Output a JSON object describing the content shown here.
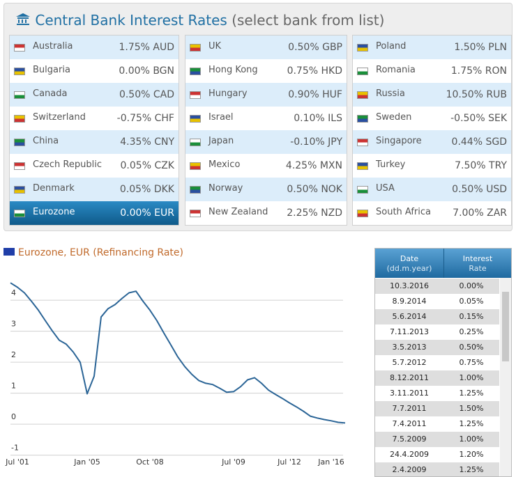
{
  "header": {
    "title": "Central Bank Interest Rates",
    "subtitle": "(select bank from list)"
  },
  "banks": [
    [
      {
        "name": "Australia",
        "rate": "1.75% AUD"
      },
      {
        "name": "Bulgaria",
        "rate": "0.00% BGN"
      },
      {
        "name": "Canada",
        "rate": "0.50% CAD"
      },
      {
        "name": "Switzerland",
        "rate": "-0.75% CHF"
      },
      {
        "name": "China",
        "rate": "4.35% CNY"
      },
      {
        "name": "Czech Republic",
        "rate": "0.05% CZK"
      },
      {
        "name": "Denmark",
        "rate": "0.05% DKK"
      },
      {
        "name": "Eurozone",
        "rate": "0.00% EUR",
        "selected": true
      }
    ],
    [
      {
        "name": "UK",
        "rate": "0.50% GBP"
      },
      {
        "name": "Hong Kong",
        "rate": "0.75% HKD"
      },
      {
        "name": "Hungary",
        "rate": "0.90% HUF"
      },
      {
        "name": "Israel",
        "rate": "0.10% ILS"
      },
      {
        "name": "Japan",
        "rate": "-0.10% JPY"
      },
      {
        "name": "Mexico",
        "rate": "4.25% MXN"
      },
      {
        "name": "Norway",
        "rate": "0.50% NOK"
      },
      {
        "name": "New Zealand",
        "rate": "2.25% NZD"
      }
    ],
    [
      {
        "name": "Poland",
        "rate": "1.50% PLN"
      },
      {
        "name": "Romania",
        "rate": "1.75% RON"
      },
      {
        "name": "Russia",
        "rate": "10.50% RUB"
      },
      {
        "name": "Sweden",
        "rate": "-0.50% SEK"
      },
      {
        "name": "Singapore",
        "rate": "0.44% SGD"
      },
      {
        "name": "Turkey",
        "rate": "7.50% TRY"
      },
      {
        "name": "USA",
        "rate": "0.50% USD"
      },
      {
        "name": "South Africa",
        "rate": "7.00% ZAR"
      }
    ]
  ],
  "chart_data": {
    "type": "line",
    "title": "Eurozone, EUR (Refinancing Rate)",
    "categories": [
      null,
      "Jul '01",
      null,
      null,
      null,
      null,
      null,
      null,
      null,
      null,
      null,
      "Jan '05",
      null,
      null,
      null,
      null,
      null,
      null,
      null,
      null,
      "Oct '08",
      null,
      null,
      null,
      null,
      null,
      null,
      null,
      null,
      null,
      null,
      null,
      "Jul '09",
      null,
      null,
      null,
      null,
      null,
      null,
      null,
      "Jul '12",
      null,
      null,
      null,
      null,
      null,
      "Jan '16",
      null,
      null
    ],
    "series": [
      {
        "color": "#2a6496",
        "values": [
          4.56,
          4.42,
          4.24,
          3.97,
          3.68,
          3.34,
          3.01,
          2.71,
          2.58,
          2.33,
          2.0,
          0.98,
          1.55,
          3.46,
          3.73,
          3.86,
          4.06,
          4.24,
          4.29,
          3.97,
          3.68,
          3.34,
          2.94,
          2.56,
          2.17,
          1.86,
          1.61,
          1.41,
          1.32,
          1.28,
          1.16,
          1.03,
          1.05,
          1.21,
          1.43,
          1.5,
          1.32,
          1.1,
          0.96,
          0.83,
          0.69,
          0.56,
          0.42,
          0.26,
          0.2,
          0.15,
          0.11,
          0.06,
          0.04
        ]
      }
    ],
    "ylim": [
      -1.03,
      4.7
    ],
    "yticks": [
      -1,
      0,
      1,
      2,
      3,
      4
    ],
    "grid": true
  },
  "table": {
    "columns": [
      [
        "Date",
        "(dd.m.year)"
      ],
      [
        "Interest",
        "Rate"
      ]
    ],
    "rows": [
      [
        "10.3.2016",
        "0.00%"
      ],
      [
        "8.9.2014",
        "0.05%"
      ],
      [
        "5.6.2014",
        "0.15%"
      ],
      [
        "7.11.2013",
        "0.25%"
      ],
      [
        "3.5.2013",
        "0.50%"
      ],
      [
        "5.7.2012",
        "0.75%"
      ],
      [
        "8.12.2011",
        "1.00%"
      ],
      [
        "3.11.2011",
        "1.25%"
      ],
      [
        "7.7.2011",
        "1.50%"
      ],
      [
        "7.4.2011",
        "1.25%"
      ],
      [
        "7.5.2009",
        "1.00%"
      ],
      [
        "24.4.2009",
        "1.20%"
      ],
      [
        "2.4.2009",
        "1.25%"
      ]
    ]
  }
}
